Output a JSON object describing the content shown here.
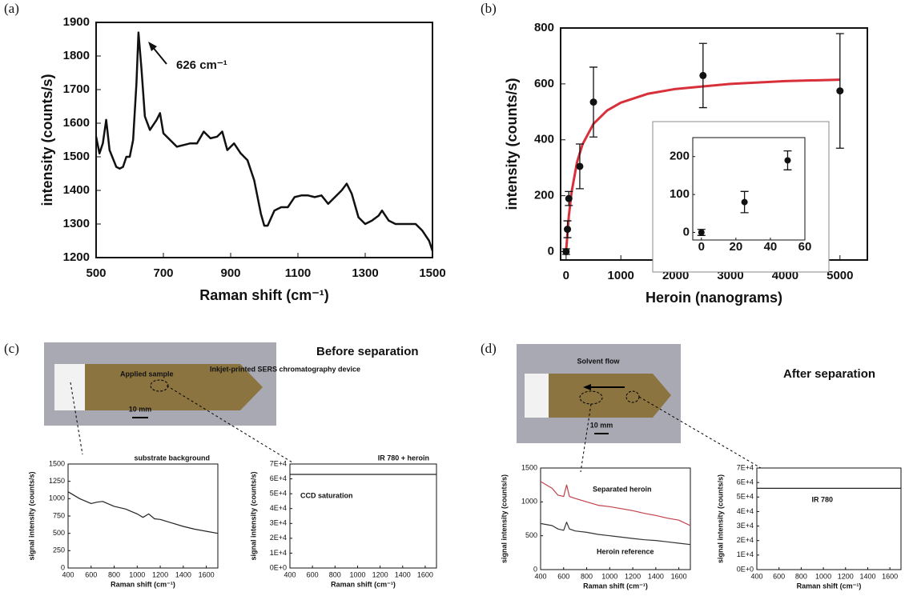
{
  "chart_data": [
    {
      "type": "line",
      "panel_label": "(a)",
      "xlabel": "Raman shift (cm⁻¹)",
      "ylabel": "intensity (counts/s)",
      "annotation": "626 cm⁻¹",
      "color": "#111111",
      "x": [
        500,
        510,
        520,
        530,
        540,
        560,
        570,
        580,
        590,
        600,
        610,
        620,
        626,
        635,
        645,
        660,
        680,
        690,
        700,
        720,
        740,
        760,
        780,
        800,
        820,
        840,
        860,
        875,
        890,
        910,
        930,
        950,
        970,
        990,
        1000,
        1010,
        1030,
        1050,
        1070,
        1090,
        1110,
        1130,
        1150,
        1170,
        1190,
        1210,
        1230,
        1245,
        1260,
        1280,
        1300,
        1320,
        1340,
        1350,
        1370,
        1390,
        1410,
        1430,
        1450,
        1470,
        1490,
        1500
      ],
      "values": [
        1560,
        1510,
        1540,
        1610,
        1520,
        1470,
        1465,
        1470,
        1500,
        1500,
        1550,
        1720,
        1870,
        1760,
        1620,
        1580,
        1610,
        1630,
        1570,
        1550,
        1530,
        1535,
        1540,
        1540,
        1575,
        1555,
        1560,
        1575,
        1520,
        1540,
        1510,
        1490,
        1430,
        1330,
        1295,
        1295,
        1340,
        1350,
        1350,
        1380,
        1385,
        1385,
        1380,
        1385,
        1360,
        1380,
        1400,
        1420,
        1390,
        1320,
        1300,
        1310,
        1325,
        1340,
        1310,
        1300,
        1300,
        1300,
        1300,
        1280,
        1250,
        1220
      ],
      "xlim": [
        500,
        1500
      ],
      "xticks": [
        500,
        700,
        900,
        1100,
        1300,
        1500
      ],
      "ylim": [
        1200,
        1900
      ],
      "yticks": [
        1200,
        1300,
        1400,
        1500,
        1600,
        1700,
        1800,
        1900
      ]
    },
    {
      "type": "scatter",
      "panel_label": "(b)",
      "xlabel": "Heroin (nanograms)",
      "ylabel": "intensity (counts/s)",
      "color": "#111111",
      "x": [
        0,
        25,
        50,
        250,
        500,
        2500,
        5000
      ],
      "values": [
        0,
        80,
        190,
        305,
        535,
        630,
        575
      ],
      "errors": [
        10,
        30,
        25,
        80,
        125,
        115,
        205
      ],
      "fit_color": "#d8303a",
      "fit_x": [
        0,
        50,
        100,
        200,
        300,
        500,
        750,
        1000,
        1500,
        2000,
        3000,
        4000,
        5000
      ],
      "fit_values": [
        0,
        128,
        213,
        320,
        384,
        457,
        505,
        533,
        565,
        582,
        600,
        610,
        615
      ],
      "xlim": [
        -100,
        5500
      ],
      "xticks": [
        0,
        1000,
        2000,
        3000,
        4000,
        5000
      ],
      "ylim": [
        -30,
        800
      ],
      "yticks": [
        0,
        200,
        400,
        600,
        800
      ]
    },
    {
      "type": "scatter",
      "color": "#111111",
      "x": [
        0,
        25,
        50
      ],
      "values": [
        0,
        80,
        190
      ],
      "errors": [
        8,
        28,
        25
      ],
      "xlim": [
        -5,
        60
      ],
      "xticks": [
        0,
        20,
        40,
        60
      ],
      "ylim": [
        -20,
        250
      ],
      "yticks": [
        0,
        100,
        200
      ]
    },
    {
      "type": "line",
      "panel_label": "(c)",
      "title": "substrate background",
      "xlabel": "Raman shift (cm⁻¹)",
      "ylabel": "signal intensity (counts/s)",
      "color": "#222222",
      "photo": {
        "heading": "Before separation",
        "labels": [
          "Applied sample",
          "Inkjet-printed SERS chromatography device"
        ],
        "scale": "10 mm"
      },
      "x": [
        400,
        500,
        600,
        650,
        700,
        800,
        900,
        1000,
        1050,
        1100,
        1150,
        1200,
        1300,
        1400,
        1500,
        1600,
        1700
      ],
      "values": [
        1100,
        1000,
        930,
        950,
        960,
        890,
        850,
        780,
        730,
        780,
        710,
        700,
        650,
        600,
        560,
        530,
        500
      ],
      "xlim": [
        400,
        1700
      ],
      "xticks": [
        400,
        600,
        800,
        1000,
        1200,
        1400,
        1600
      ],
      "ylim": [
        0,
        1500
      ],
      "yticks": [
        0,
        250,
        500,
        750,
        1000,
        1250,
        1500
      ]
    },
    {
      "type": "line",
      "title": "IR 780 + heroin",
      "annotation": "CCD saturation",
      "xlabel": "Raman shift (cm⁻¹)",
      "ylabel": "signal intensity (counts/s)",
      "color": "#222222",
      "x": [
        400,
        1700
      ],
      "values": [
        63000,
        63000
      ],
      "xlim": [
        400,
        1700
      ],
      "xticks": [
        400,
        600,
        800,
        1000,
        1200,
        1400,
        1600
      ],
      "ylim": [
        0,
        70000
      ],
      "yticks": [
        {
          "value": 0,
          "label": "0E+0"
        },
        {
          "value": 10000,
          "label": "1E+4"
        },
        {
          "value": 20000,
          "label": "2E+4"
        },
        {
          "value": 30000,
          "label": "3E+4"
        },
        {
          "value": 40000,
          "label": "4E+4"
        },
        {
          "value": 50000,
          "label": "5E+4"
        },
        {
          "value": 60000,
          "label": "6E+4"
        },
        {
          "value": 70000,
          "label": "7E+4"
        }
      ]
    },
    {
      "type": "line",
      "panel_label": "(d)",
      "xlabel": "Raman shift (cm⁻¹)",
      "ylabel": "signal intensity (counts/s)",
      "photo": {
        "heading": "After separation",
        "labels": [
          "Solvent flow"
        ],
        "scale": "10 mm"
      },
      "x": [
        400,
        500,
        550,
        600,
        626,
        650,
        700,
        800,
        900,
        1000,
        1100,
        1200,
        1300,
        1400,
        1500,
        1600,
        1700
      ],
      "series": [
        {
          "name": "Separated heroin",
          "color": "#c0404a",
          "values": [
            1300,
            1200,
            1100,
            1080,
            1250,
            1080,
            1050,
            1000,
            950,
            930,
            900,
            870,
            830,
            800,
            760,
            730,
            650
          ]
        },
        {
          "name": "Heroin reference",
          "color": "#333333",
          "values": [
            680,
            650,
            600,
            580,
            700,
            600,
            570,
            550,
            520,
            500,
            480,
            460,
            440,
            430,
            410,
            390,
            370
          ]
        }
      ],
      "xlim": [
        400,
        1700
      ],
      "xticks": [
        400,
        600,
        800,
        1000,
        1200,
        1400,
        1600
      ],
      "ylim": [
        0,
        1500
      ],
      "yticks": [
        0,
        500,
        1000,
        1500
      ]
    },
    {
      "type": "line",
      "title": "IR 780",
      "xlabel": "Raman shift (cm⁻¹)",
      "ylabel": "signal intensity (counts/s)",
      "color": "#222222",
      "x": [
        400,
        1700
      ],
      "values": [
        56000,
        56000
      ],
      "xlim": [
        400,
        1700
      ],
      "xticks": [
        400,
        600,
        800,
        1000,
        1200,
        1400,
        1600
      ],
      "ylim": [
        0,
        70000
      ],
      "yticks": [
        {
          "value": 0,
          "label": "0E+0"
        },
        {
          "value": 10000,
          "label": "1E+4"
        },
        {
          "value": 20000,
          "label": "2E+4"
        },
        {
          "value": 30000,
          "label": "3E+4"
        },
        {
          "value": 40000,
          "label": "4E+4"
        },
        {
          "value": 50000,
          "label": "5E+4"
        },
        {
          "value": 60000,
          "label": "6E+4"
        },
        {
          "value": 70000,
          "label": "7E+4"
        }
      ]
    }
  ]
}
